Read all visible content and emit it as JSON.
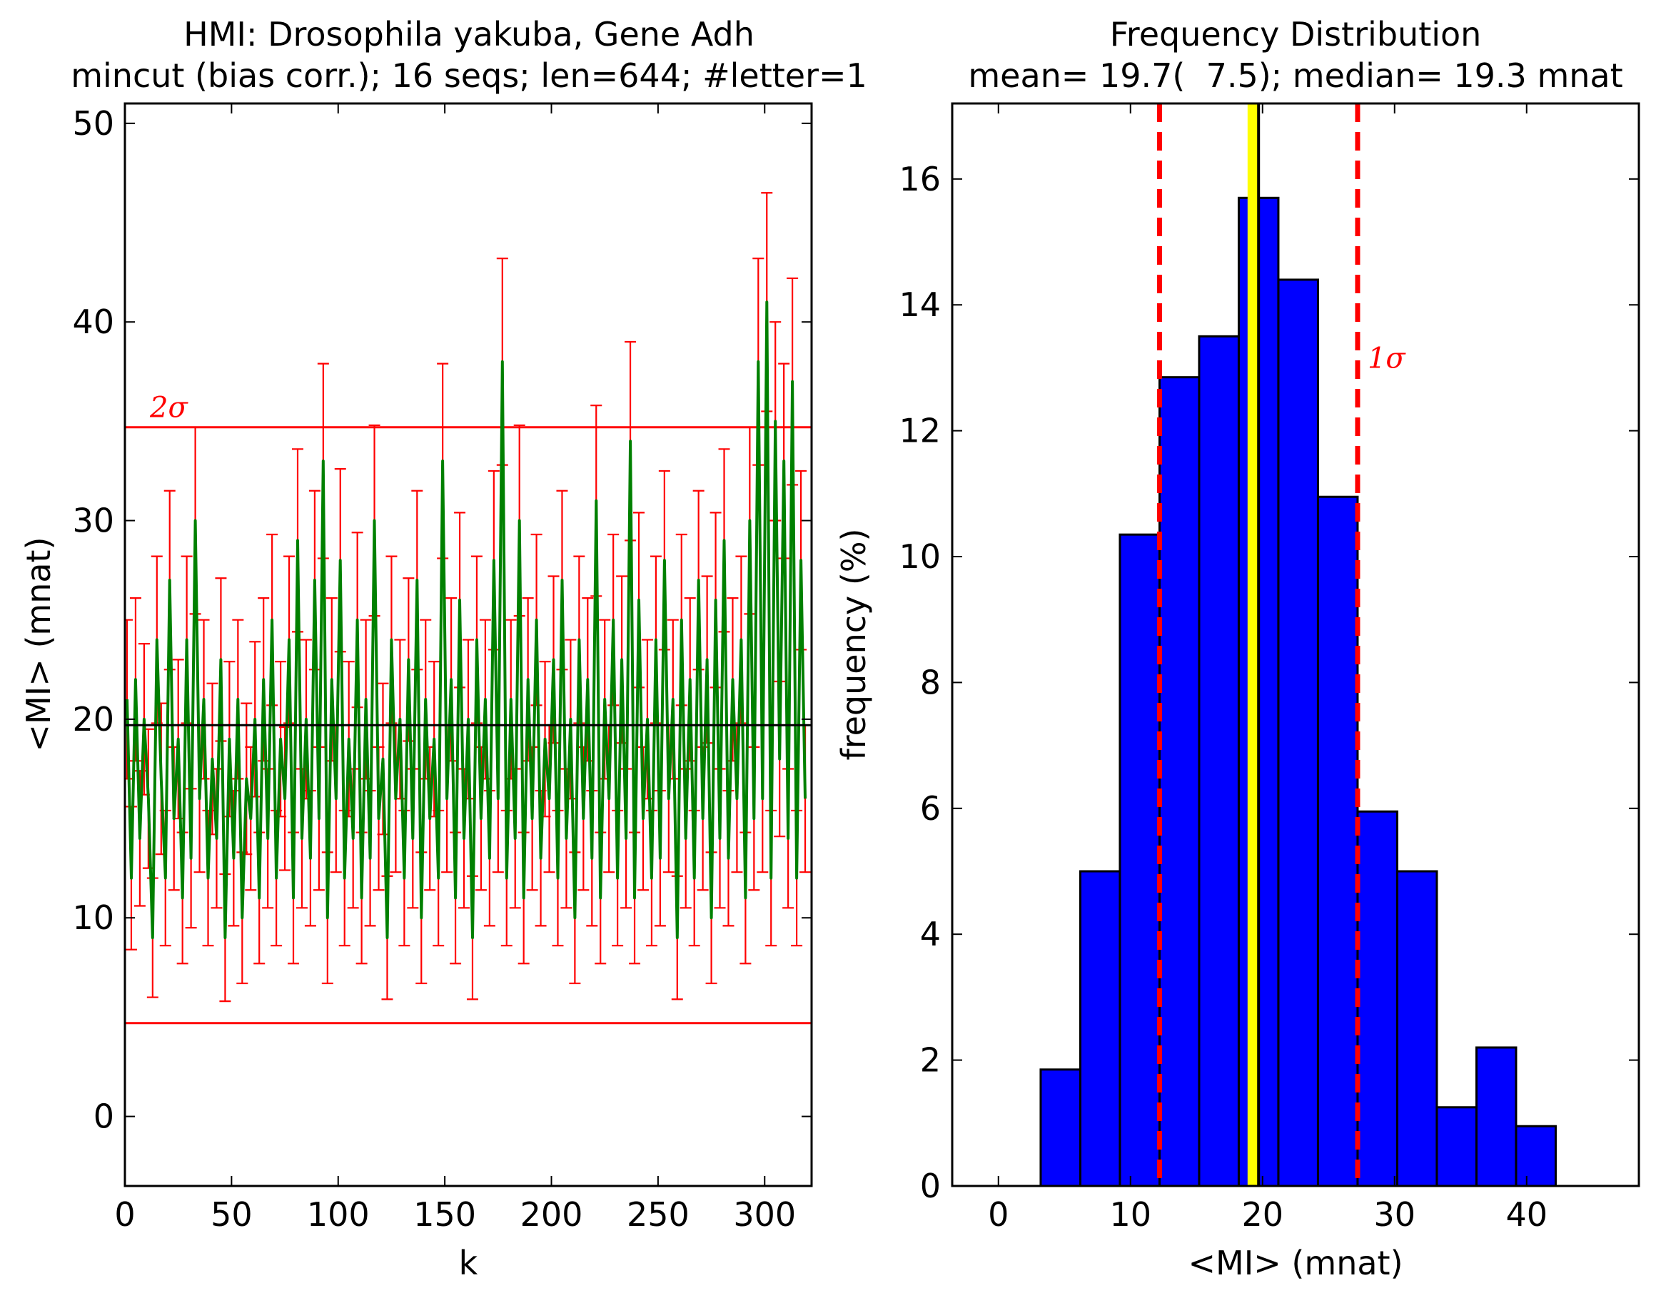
{
  "chart_data": [
    {
      "type": "line",
      "title": "HMI: Drosophila yakuba, Gene Adh",
      "subtitle": "mincut (bias corr.); 16 seqs; len=644; #letter=1",
      "xlabel": "k",
      "ylabel": "<MI> (mnat)",
      "xlim": [
        0,
        322
      ],
      "ylim": [
        -3.5,
        51
      ],
      "xticks": [
        0,
        50,
        100,
        150,
        200,
        250,
        300
      ],
      "yticks": [
        0,
        10,
        20,
        30,
        40,
        50
      ],
      "grid": false,
      "series_color": "#008000",
      "errorbar_color": "#ff0000",
      "reference_lines": [
        {
          "value": 19.7,
          "color": "#000000"
        },
        {
          "value": 34.7,
          "color": "#ff0000",
          "label": "2σ"
        },
        {
          "value": 4.7,
          "color": "#ff0000"
        }
      ],
      "series": [
        {
          "x": [
            1,
            3,
            5,
            7,
            9,
            11,
            13,
            15,
            17,
            19,
            21,
            23,
            25,
            27,
            29,
            31,
            33,
            35,
            37,
            39,
            41,
            43,
            45,
            47,
            49,
            51,
            53,
            55,
            57,
            59,
            61,
            63,
            65,
            67,
            69,
            71,
            73,
            75,
            77,
            79,
            81,
            83,
            85,
            87,
            89,
            91,
            93,
            95,
            97,
            99,
            101,
            103,
            105,
            107,
            109,
            111,
            113,
            115,
            117,
            119,
            121,
            123,
            125,
            127,
            129,
            131,
            133,
            135,
            137,
            139,
            141,
            143,
            145,
            147,
            149,
            151,
            153,
            155,
            157,
            159,
            161,
            163,
            165,
            167,
            169,
            171,
            173,
            175,
            177,
            179,
            181,
            183,
            185,
            187,
            189,
            191,
            193,
            195,
            197,
            199,
            201,
            203,
            205,
            207,
            209,
            211,
            213,
            215,
            217,
            219,
            221,
            223,
            225,
            227,
            229,
            231,
            233,
            235,
            237,
            239,
            241,
            243,
            245,
            247,
            249,
            251,
            253,
            255,
            257,
            259,
            261,
            263,
            265,
            267,
            269,
            271,
            273,
            275,
            277,
            279,
            281,
            283,
            285,
            287,
            289,
            291,
            293,
            295,
            297,
            299,
            301,
            303,
            305,
            307,
            309,
            311,
            313,
            315,
            317,
            319
          ],
          "y": [
            21,
            12,
            22,
            14,
            20,
            16,
            9,
            24,
            17,
            12,
            27,
            15,
            19,
            11,
            24,
            13,
            30,
            16,
            21,
            12,
            18,
            14,
            23,
            9,
            19,
            13,
            21,
            10,
            17,
            15,
            20,
            11,
            22,
            14,
            25,
            12,
            19,
            16,
            24,
            11,
            29,
            14,
            20,
            13,
            27,
            15,
            33,
            10,
            22,
            16,
            28,
            12,
            19,
            14,
            25,
            11,
            21,
            13,
            30,
            15,
            18,
            9,
            24,
            16,
            20,
            12,
            23,
            14,
            27,
            10,
            21,
            15,
            19,
            12,
            33,
            16,
            22,
            11,
            26,
            14,
            20,
            9,
            24,
            15,
            21,
            13,
            28,
            16,
            38,
            12,
            21,
            14,
            30,
            11,
            22,
            15,
            25,
            13,
            19,
            16,
            23,
            12,
            27,
            14,
            20,
            10,
            24,
            15,
            22,
            13,
            31,
            11,
            21,
            16,
            25,
            12,
            23,
            14,
            34,
            11,
            26,
            15,
            20,
            12,
            24,
            13,
            28,
            16,
            21,
            9,
            25,
            14,
            22,
            12,
            27,
            15,
            23,
            10,
            26,
            14,
            29,
            13,
            22,
            16,
            24,
            11,
            30,
            15,
            38,
            16,
            41,
            12,
            35,
            18,
            33,
            14,
            37,
            12,
            28,
            16
          ],
          "yerr": [
            4,
            3.6,
            4.1,
            3.4,
            3.8,
            3.5,
            3,
            4.2,
            3.8,
            3.4,
            4.5,
            3.6,
            4,
            3.3,
            4.2,
            3.5,
            4.7,
            3.7,
            4,
            3.4,
            3.8,
            3.5,
            4.1,
            3.2,
            3.9,
            3.4,
            4,
            3.3,
            3.8,
            3.6,
            3.9,
            3.3,
            4.1,
            3.5,
            4.3,
            3.4,
            3.9,
            3.6,
            4.2,
            3.3,
            4.6,
            3.5,
            4,
            3.4,
            4.5,
            3.6,
            4.9,
            3.3,
            4.1,
            3.7,
            4.6,
            3.4,
            3.9,
            3.5,
            4.4,
            3.3,
            4,
            3.4,
            4.8,
            3.6,
            3.8,
            3.1,
            4.2,
            3.7,
            4,
            3.4,
            4.1,
            3.5,
            4.5,
            3.3,
            4,
            3.6,
            3.9,
            3.4,
            4.9,
            3.7,
            4.1,
            3.3,
            4.4,
            3.5,
            4,
            3.1,
            4.2,
            3.6,
            4,
            3.4,
            4.5,
            3.7,
            5.2,
            3.4,
            4,
            3.5,
            4.8,
            3.3,
            4.1,
            3.6,
            4.3,
            3.4,
            3.9,
            3.7,
            4.2,
            3.4,
            4.5,
            3.5,
            4,
            3.3,
            4.2,
            3.6,
            4.1,
            3.4,
            4.8,
            3.3,
            4,
            3.7,
            4.3,
            3.4,
            4.2,
            3.5,
            5,
            3.3,
            4.4,
            3.6,
            4,
            3.4,
            4.2,
            3.4,
            4.5,
            3.7,
            4,
            3.1,
            4.3,
            3.5,
            4.1,
            3.4,
            4.5,
            3.6,
            4.2,
            3.3,
            4.4,
            3.5,
            4.6,
            3.4,
            4.1,
            3.7,
            4.2,
            3.3,
            4.7,
            3.6,
            5.2,
            3.7,
            5.5,
            3.4,
            5,
            3.9,
            4.9,
            3.5,
            5.2,
            3.4,
            4.5,
            3.7
          ]
        }
      ]
    },
    {
      "type": "bar",
      "title": "Frequency Distribution",
      "subtitle": "mean= 19.7(  7.5); median= 19.3 mnat",
      "xlabel": "<MI> (mnat)",
      "ylabel": "frequency (%)",
      "xlim": [
        -3.5,
        48.5
      ],
      "ylim": [
        0,
        17.2
      ],
      "xticks": [
        0,
        10,
        20,
        30,
        40
      ],
      "yticks": [
        0,
        2,
        4,
        6,
        8,
        10,
        12,
        14,
        16
      ],
      "grid": false,
      "bar_color": "#0000ff",
      "bin_edges": [
        3.2,
        6.2,
        9.2,
        12.2,
        15.2,
        18.2,
        21.2,
        24.2,
        27.2,
        30.2,
        33.2,
        36.2,
        39.2,
        42.2
      ],
      "values": [
        1.85,
        5.0,
        10.35,
        12.85,
        13.5,
        15.7,
        14.4,
        10.95,
        5.95,
        5.0,
        1.25,
        2.2,
        0.95
      ],
      "mean_line": {
        "value": 19.7,
        "color": "#000000",
        "halo_color": "#ffff00"
      },
      "median_line": {
        "value": 19.3,
        "color": "#ffff00"
      },
      "sigma_lines": [
        {
          "value": 12.2,
          "color": "#ff0000",
          "style": "dashed"
        },
        {
          "value": 27.2,
          "color": "#ff0000",
          "style": "dashed",
          "label": "1σ"
        }
      ]
    }
  ]
}
